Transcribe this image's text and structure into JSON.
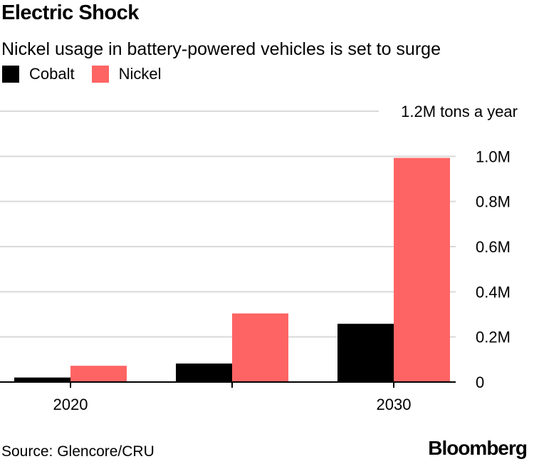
{
  "title": "Electric Shock",
  "subtitle": "Nickel usage in battery-powered vehicles is set to surge",
  "source": "Source: Glencore/CRU",
  "brand": "Bloomberg",
  "legend": [
    {
      "name": "Cobalt",
      "color": "#000000"
    },
    {
      "name": "Nickel",
      "color": "#ff6464"
    }
  ],
  "chart_data": {
    "type": "bar",
    "categories": [
      "2020",
      "",
      "2030"
    ],
    "series": [
      {
        "name": "Cobalt",
        "color": "#000000",
        "values": [
          0.02,
          0.082,
          0.258
        ]
      },
      {
        "name": "Nickel",
        "color": "#ff6464",
        "values": [
          0.072,
          0.304,
          0.993
        ]
      }
    ],
    "y_ticks": [
      {
        "value": 0,
        "label": "0"
      },
      {
        "value": 0.2,
        "label": "0.2M"
      },
      {
        "value": 0.4,
        "label": "0.4M"
      },
      {
        "value": 0.6,
        "label": "0.6M"
      },
      {
        "value": 0.8,
        "label": "0.8M"
      },
      {
        "value": 1.0,
        "label": "1.0M"
      },
      {
        "value": 1.2,
        "label": "1.2M tons a year"
      }
    ],
    "ylim": [
      0,
      1.2
    ],
    "grid": true,
    "y_axis_side": "right"
  }
}
